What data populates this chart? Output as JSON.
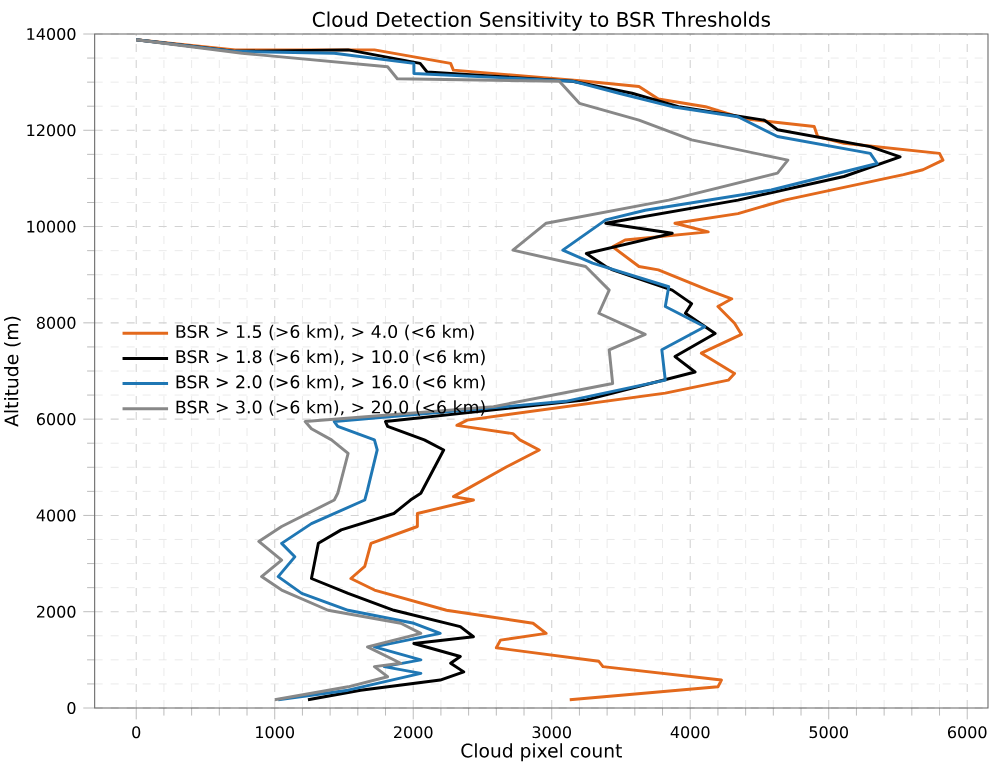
{
  "chart_data": {
    "type": "line",
    "title": "Cloud Detection Sensitivity to BSR Thresholds",
    "xlabel": "Cloud pixel count",
    "ylabel": "Altitude (m)",
    "xlim": [
      -300,
      6150
    ],
    "ylim": [
      0,
      14000
    ],
    "xticks": [
      0,
      1000,
      2000,
      3000,
      4000,
      5000,
      6000
    ],
    "yticks": [
      0,
      2000,
      4000,
      6000,
      8000,
      10000,
      12000,
      14000
    ],
    "grid": true,
    "legend": "left",
    "line_style": "solid",
    "series": [
      {
        "name": "BSR > 1.5 (>6 km), > 4.0 (<6 km)",
        "color": "#e3691c",
        "x": [
          3130,
          4200,
          4225,
          3370,
          3340,
          2600,
          2630,
          2960,
          2865,
          2240,
          1720,
          1550,
          1650,
          1695,
          2030,
          2030,
          2435,
          2290,
          2675,
          2910,
          2770,
          2720,
          2315,
          2390,
          3820,
          4275,
          4320,
          4080,
          4370,
          4320,
          4200,
          4300,
          4130,
          3770,
          3630,
          3440,
          3530,
          4130,
          3890,
          4345,
          4680,
          5540,
          5680,
          5825,
          5800,
          5110,
          4920,
          4895,
          4390,
          4110,
          3770,
          3630,
          3245,
          2290,
          2270,
          1720,
          715,
          0
        ],
        "values": [
          170,
          440,
          580,
          860,
          970,
          1250,
          1410,
          1550,
          1760,
          2030,
          2450,
          2690,
          2940,
          3420,
          3770,
          4040,
          4320,
          4390,
          5010,
          5360,
          5570,
          5700,
          5870,
          5980,
          6540,
          6810,
          6950,
          7370,
          7760,
          7990,
          8340,
          8500,
          8680,
          9100,
          9170,
          9580,
          9720,
          9890,
          10070,
          10270,
          10550,
          11080,
          11180,
          11380,
          11520,
          11730,
          11870,
          12080,
          12240,
          12490,
          12650,
          12910,
          13020,
          13250,
          13390,
          13670,
          13670,
          13880
        ]
      },
      {
        "name": "BSR > 1.8 (>6 km), > 10.0 (<6 km)",
        "color": "#000000",
        "x": [
          1240,
          1620,
          2195,
          2365,
          2270,
          2340,
          2005,
          2435,
          2340,
          1860,
          1530,
          1265,
          1315,
          1480,
          1860,
          1980,
          2055,
          2220,
          2080,
          1815,
          1800,
          3250,
          4035,
          3890,
          4180,
          3965,
          4010,
          3870,
          3440,
          3390,
          3250,
          3870,
          3390,
          4345,
          5110,
          5515,
          5300,
          4630,
          4535,
          3915,
          3580,
          3150,
          2100,
          2050,
          1530,
          715,
          0
        ],
        "values": [
          170,
          370,
          580,
          750,
          930,
          1070,
          1340,
          1480,
          1690,
          2030,
          2380,
          2690,
          3420,
          3700,
          4040,
          4320,
          4460,
          5360,
          5570,
          5850,
          5950,
          6400,
          6980,
          7300,
          7780,
          8200,
          8400,
          8680,
          9100,
          9170,
          9440,
          9860,
          10070,
          10550,
          11040,
          11450,
          11660,
          12010,
          12210,
          12490,
          12770,
          13020,
          13210,
          13390,
          13670,
          13640,
          13880
        ]
      },
      {
        "name": "BSR > 2.0 (>6 km), > 16.0 (<6 km)",
        "color": "#1f77b4",
        "x": [
          1025,
          1530,
          2055,
          1790,
          2055,
          1720,
          2195,
          2005,
          1530,
          1195,
          1025,
          1145,
          1050,
          1265,
          1650,
          1670,
          1740,
          1720,
          1455,
          1430,
          3100,
          3820,
          3795,
          4105,
          3820,
          3845,
          3295,
          3080,
          3390,
          3675,
          4585,
          5350,
          5300,
          4630,
          4345,
          3870,
          3485,
          3150,
          2005,
          2005,
          1430,
          715,
          0
        ],
        "values": [
          170,
          370,
          720,
          860,
          1000,
          1270,
          1550,
          1760,
          2030,
          2380,
          2730,
          3140,
          3420,
          3830,
          4320,
          4530,
          5360,
          5570,
          5850,
          5950,
          6370,
          6810,
          7440,
          7920,
          8340,
          8750,
          9240,
          9510,
          10140,
          10340,
          10760,
          11310,
          11520,
          11870,
          12280,
          12490,
          12770,
          13020,
          13180,
          13390,
          13600,
          13640,
          13880
        ]
      },
      {
        "name": "BSR > 3.0 (>6 km), > 20.0 (<6 km)",
        "color": "#888888",
        "x": [
          1000,
          1530,
          1815,
          1720,
          1910,
          1670,
          2055,
          1910,
          1385,
          1050,
          905,
          1050,
          885,
          1050,
          1430,
          1455,
          1530,
          1410,
          1265,
          1220,
          2580,
          3440,
          3415,
          3675,
          3340,
          3415,
          3245,
          2720,
          2960,
          3845,
          4630,
          4705,
          4010,
          3630,
          3200,
          3055,
          1885,
          1815,
          765,
          0
        ],
        "values": [
          170,
          440,
          650,
          860,
          930,
          1270,
          1550,
          1760,
          2030,
          2450,
          2730,
          3070,
          3460,
          3770,
          4320,
          4460,
          5290,
          5570,
          5800,
          5950,
          6260,
          6740,
          7440,
          7760,
          8200,
          8680,
          9170,
          9510,
          10070,
          10550,
          11110,
          11380,
          11800,
          12210,
          12560,
          13020,
          13070,
          13320,
          13600,
          13880
        ]
      }
    ]
  }
}
